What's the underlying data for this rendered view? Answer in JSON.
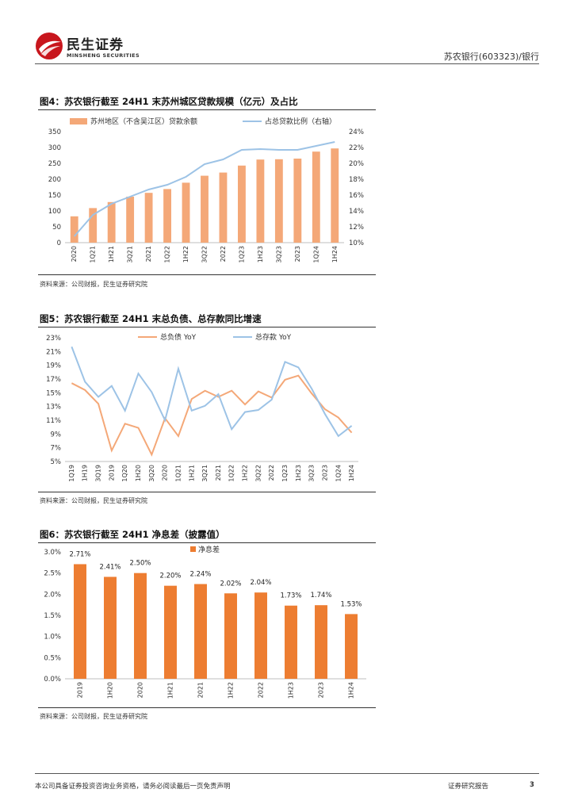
{
  "header": {
    "logo_cn": "民生证券",
    "logo_en": "MINSHENG SECURITIES",
    "doc_ref": "苏农银行(603323)/银行",
    "brand_color": "#c8161d"
  },
  "figures": [
    {
      "title": "图4：苏农银行截至 24H1 末苏州城区贷款规模（亿元）及占比",
      "source": "资料来源：公司财报，民生证券研究院"
    },
    {
      "title": "图5：苏农银行截至 24H1 末总负债、总存款同比增速",
      "source": "资料来源：公司财报，民生证券研究院"
    },
    {
      "title": "图6：苏农银行截至 24H1 净息差（披露值）",
      "source": "资料来源：公司财报，民生证券研究院"
    }
  ],
  "chart_data": [
    {
      "type": "bar",
      "title": "图4：苏农银行截至 24H1 末苏州城区贷款规模（亿元）及占比",
      "categories": [
        "2020",
        "1Q21",
        "1H21",
        "3Q21",
        "2021",
        "1Q22",
        "1H22",
        "3Q22",
        "2022",
        "1Q23",
        "1H23",
        "3Q23",
        "2023",
        "1Q24",
        "1H24"
      ],
      "series": [
        {
          "name": "苏州地区（不含吴江区）贷款余额",
          "type": "bar",
          "axis": "left",
          "color": "#f4a878",
          "values": [
            83,
            109,
            128,
            145,
            157,
            169,
            189,
            211,
            221,
            243,
            262,
            263,
            265,
            287,
            297
          ]
        },
        {
          "name": "占总贷款比例（右轴）",
          "type": "line",
          "axis": "right",
          "color": "#9dc3e6",
          "values": [
            10.8,
            13.5,
            14.9,
            15.8,
            16.7,
            17.3,
            18.3,
            19.9,
            20.5,
            21.7,
            21.8,
            21.7,
            21.7,
            22.2,
            22.7
          ]
        }
      ],
      "yticks": [
        "0",
        "50",
        "100",
        "150",
        "200",
        "250",
        "300",
        "350"
      ],
      "ylim": [
        0,
        350
      ],
      "y2ticks": [
        "10%",
        "12%",
        "14%",
        "16%",
        "18%",
        "20%",
        "22%",
        "24%"
      ],
      "y2lim": [
        10,
        24
      ],
      "legend": "top"
    },
    {
      "type": "line",
      "title": "图5：苏农银行截至 24H1 末总负债、总存款同比增速",
      "categories": [
        "1Q19",
        "1H19",
        "3Q19",
        "2019",
        "1Q20",
        "1H20",
        "3Q20",
        "2020",
        "1Q21",
        "1H21",
        "3Q21",
        "2021",
        "1Q22",
        "1H22",
        "3Q22",
        "2022",
        "1Q23",
        "1H23",
        "3Q23",
        "2023",
        "1Q24",
        "1H24"
      ],
      "series": [
        {
          "name": "总负债 YoY",
          "color": "#f4a878",
          "values": [
            16.4,
            15.4,
            13.4,
            6.6,
            10.5,
            9.9,
            6.0,
            11.3,
            8.7,
            14.1,
            15.3,
            14.4,
            15.3,
            13.3,
            15.2,
            14.3,
            16.9,
            17.5,
            14.9,
            12.6,
            11.4,
            9.2
          ]
        },
        {
          "name": "总存款 YoY",
          "color": "#9dc3e6",
          "values": [
            21.7,
            16.6,
            14.4,
            16.0,
            12.4,
            17.8,
            15.1,
            11.0,
            18.5,
            12.4,
            13.1,
            14.8,
            9.7,
            12.2,
            12.5,
            14.0,
            19.5,
            18.7,
            15.6,
            11.9,
            8.7,
            10.2
          ]
        }
      ],
      "yticks": [
        "5%",
        "7%",
        "9%",
        "11%",
        "13%",
        "15%",
        "17%",
        "19%",
        "21%",
        "23%"
      ],
      "ylim": [
        5,
        23
      ],
      "legend": "top"
    },
    {
      "type": "bar",
      "title": "图6：苏农银行截至 24H1 净息差（披露值）",
      "categories": [
        "2019",
        "1H20",
        "2020",
        "1H21",
        "2021",
        "1H22",
        "2022",
        "1H23",
        "2023",
        "1H24"
      ],
      "series": [
        {
          "name": "净息差",
          "color": "#ed7d31",
          "values": [
            2.71,
            2.41,
            2.5,
            2.2,
            2.24,
            2.02,
            2.04,
            1.73,
            1.74,
            1.53
          ],
          "labels": [
            "2.71%",
            "2.41%",
            "2.50%",
            "2.20%",
            "2.24%",
            "2.02%",
            "2.04%",
            "1.73%",
            "1.74%",
            "1.53%"
          ]
        }
      ],
      "yticks": [
        "0.0%",
        "0.5%",
        "1.0%",
        "1.5%",
        "2.0%",
        "2.5%",
        "3.0%"
      ],
      "ylim": [
        0,
        3.0
      ],
      "legend": "top"
    }
  ],
  "footer": {
    "disclaimer": "本公司具备证券投资咨询业务资格，请务必阅读最后一页免责声明",
    "report_type": "证券研究报告",
    "page_number": "3"
  }
}
